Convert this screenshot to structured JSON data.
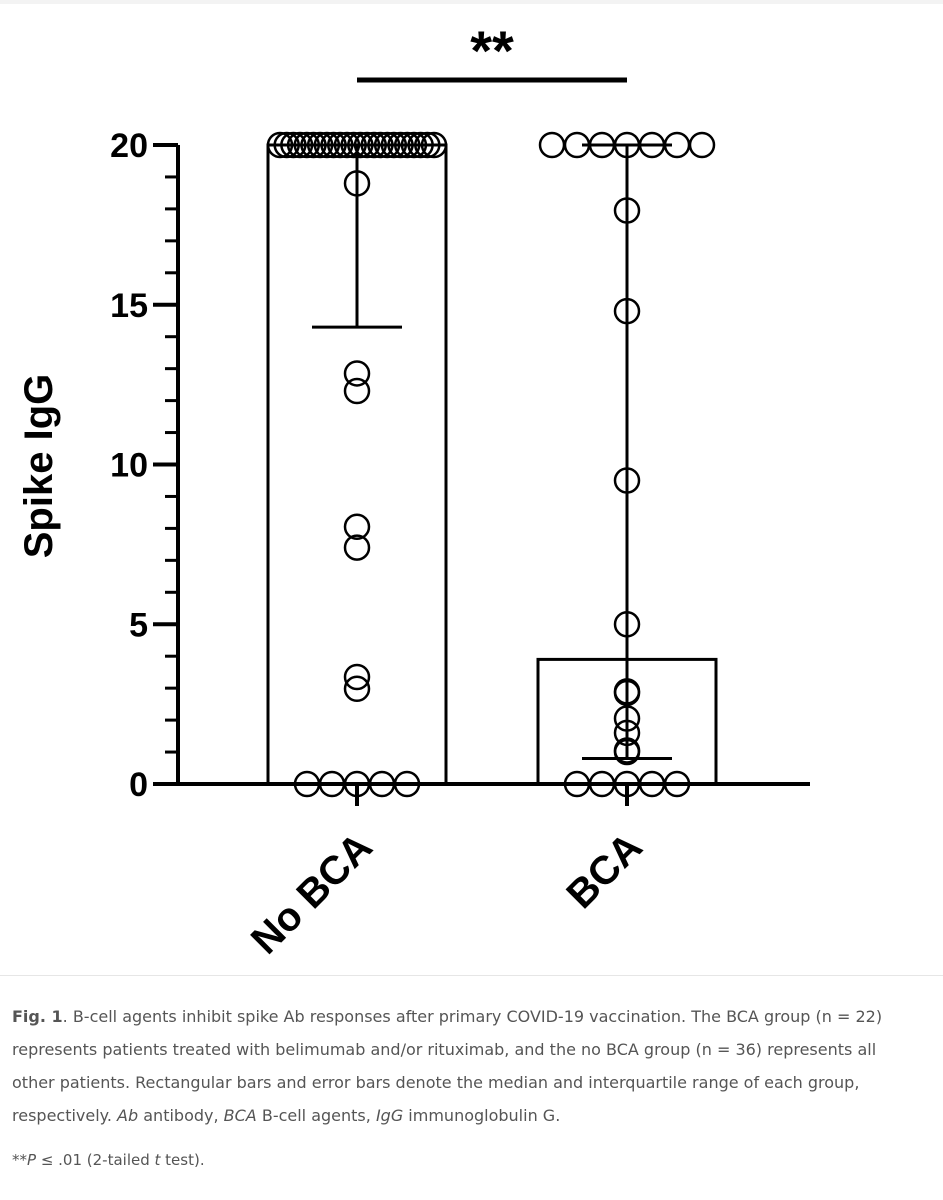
{
  "chart_data": {
    "type": "bar",
    "ylabel": "Spike IgG",
    "xlabel": "",
    "ylim": [
      0,
      20
    ],
    "yticks": [
      0,
      5,
      10,
      15,
      20
    ],
    "ytick_labels": [
      "0",
      "5",
      "10",
      "15",
      "20"
    ],
    "minor_ticks_per_major": 4,
    "categories": [
      "No BCA",
      "BCA"
    ],
    "values": [
      20,
      3.9
    ],
    "iqr": [
      [
        14.3,
        20
      ],
      [
        0.8,
        20
      ]
    ],
    "bar_stat": "median",
    "error_bar_stat": "interquartile range",
    "points": [
      [
        0,
        0,
        0,
        0,
        0,
        2.98,
        3.35,
        7.4,
        8.05,
        12.3,
        12.85,
        18.8,
        20,
        20,
        20,
        20,
        20,
        20,
        20,
        20,
        20,
        20,
        20,
        20,
        20,
        20,
        20,
        20,
        20,
        20,
        20,
        20,
        20,
        20,
        20,
        20
      ],
      [
        0,
        0,
        0,
        0,
        0,
        1.0,
        1.05,
        1.6,
        2.05,
        2.85,
        2.9,
        5.0,
        9.5,
        14.8,
        17.95,
        20,
        20,
        20,
        20,
        20,
        20,
        20
      ]
    ],
    "significance": {
      "label": "**",
      "between": [
        "No BCA",
        "BCA"
      ]
    },
    "grid": false,
    "legend": "none",
    "colors": {
      "stroke": "#000000",
      "fill": "#ffffff"
    }
  },
  "caption": {
    "label": "Fig. 1",
    "segments": [
      {
        "text": ". B-cell agents inhibit spike Ab responses after primary COVID-19 vaccination. The BCA group (n = 22) represents patients treated with belimumab and/or rituximab, and the no BCA group (n = 36) represents all other patients. Rectangular bars and error bars denote the median and interquartile range of each group, respectively. ",
        "italic": false
      },
      {
        "text": "Ab",
        "italic": true
      },
      {
        "text": " antibody, ",
        "italic": false
      },
      {
        "text": "BCA",
        "italic": true
      },
      {
        "text": " B-cell agents, ",
        "italic": false
      },
      {
        "text": "IgG",
        "italic": true
      },
      {
        "text": " immunoglobulin G.",
        "italic": false
      }
    ]
  },
  "footnote": {
    "segments": [
      {
        "text": "**",
        "italic": false
      },
      {
        "text": "P",
        "italic": true
      },
      {
        "text": " ≤ .01 (2-tailed ",
        "italic": false
      },
      {
        "text": "t",
        "italic": true
      },
      {
        "text": " test).",
        "italic": false
      }
    ]
  }
}
